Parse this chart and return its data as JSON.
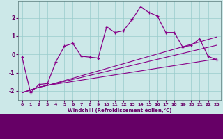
{
  "title": "",
  "xlabel": "Windchill (Refroidissement éolien,°C)",
  "background_color": "#cce8e8",
  "line_color": "#880088",
  "grid_color": "#99cccc",
  "axis_bg": "#cce8e8",
  "tick_bg": "#660066",
  "xlim": [
    -0.5,
    23.5
  ],
  "ylim": [
    -2.5,
    2.9
  ],
  "xticks": [
    0,
    1,
    2,
    3,
    4,
    5,
    6,
    7,
    8,
    9,
    10,
    11,
    12,
    13,
    14,
    15,
    16,
    17,
    18,
    19,
    20,
    21,
    22,
    23
  ],
  "yticks": [
    -2,
    -1,
    0,
    1,
    2
  ],
  "main_x": [
    0,
    1,
    2,
    3,
    4,
    5,
    6,
    7,
    8,
    9,
    10,
    11,
    12,
    13,
    14,
    15,
    16,
    17,
    18,
    19,
    20,
    21,
    22,
    23
  ],
  "main_y": [
    -0.15,
    -2.1,
    -1.65,
    -1.6,
    -0.4,
    0.45,
    0.6,
    -0.1,
    -0.15,
    -0.2,
    1.5,
    1.2,
    1.3,
    1.9,
    2.6,
    2.3,
    2.1,
    1.2,
    1.2,
    0.4,
    0.5,
    0.85,
    -0.1,
    -0.3
  ],
  "line2_x": [
    0,
    2,
    3,
    23
  ],
  "line2_y": [
    -2.1,
    -1.8,
    -1.7,
    -0.25
  ],
  "line3_x": [
    0,
    2,
    3,
    23
  ],
  "line3_y": [
    -2.1,
    -1.8,
    -1.7,
    0.5
  ],
  "line4_x": [
    0,
    2,
    3,
    23
  ],
  "line4_y": [
    -2.1,
    -1.8,
    -1.7,
    0.95
  ]
}
